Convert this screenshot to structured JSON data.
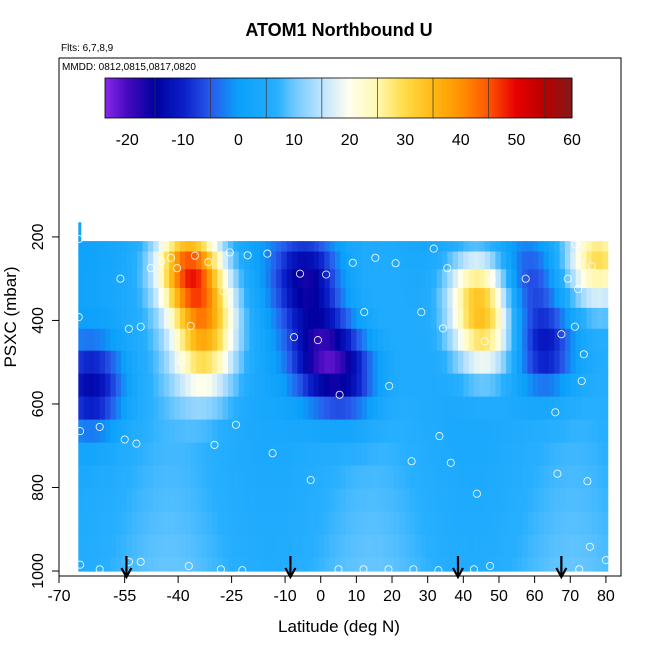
{
  "chart_data": {
    "type": "heatmap",
    "title": "ATOM1 Northbound U",
    "subtitle": "Flts: 6,7,8,9",
    "annotation": "MMDD: 0812,0815,0817,0820",
    "xlabel": "Latitude (deg N)",
    "ylabel": "PSXC (mbar)",
    "xlim": [
      -70,
      82
    ],
    "ylim": [
      1000,
      100
    ],
    "x_ticks": [
      -70,
      -55,
      -40,
      -25,
      -10,
      0,
      10,
      20,
      30,
      40,
      50,
      60,
      70,
      80
    ],
    "y_ticks": [
      200,
      400,
      600,
      800,
      1000
    ],
    "colorbar": {
      "ticks": [
        -20,
        -10,
        0,
        10,
        20,
        30,
        40,
        50,
        60
      ],
      "range": [
        -24,
        60
      ],
      "position": "top"
    },
    "arrow_latitudes": [
      -54.5,
      -8.5,
      38.5,
      67.5
    ],
    "pressure_bins": [
      215,
      255,
      300,
      345,
      395,
      445,
      500,
      555,
      610,
      665,
      720,
      775,
      830,
      885,
      940,
      995
    ],
    "latitude_range": [
      -68,
      80
    ],
    "wind_features": [
      {
        "lat": -37,
        "p": 270,
        "u": 40
      },
      {
        "lat": -32,
        "p": 390,
        "u": 26
      },
      {
        "lat": -33,
        "p": 500,
        "u": 18
      },
      {
        "lat": -4,
        "p": 300,
        "u": -15
      },
      {
        "lat": 0,
        "p": 480,
        "u": -16
      },
      {
        "lat": 8,
        "p": 540,
        "u": -12
      },
      {
        "lat": -64,
        "p": 560,
        "u": -14
      },
      {
        "lat": 44,
        "p": 330,
        "u": 27
      },
      {
        "lat": 46,
        "p": 440,
        "u": 22
      },
      {
        "lat": 58,
        "p": 300,
        "u": -8
      },
      {
        "lat": 63,
        "p": 470,
        "u": -14
      },
      {
        "lat": 78,
        "p": 250,
        "u": 28
      }
    ],
    "observations": [
      {
        "lat": -67.8,
        "p": 205
      },
      {
        "lat": -67.9,
        "p": 392
      },
      {
        "lat": -67.5,
        "p": 665
      },
      {
        "lat": -62.0,
        "p": 655
      },
      {
        "lat": -56.2,
        "p": 300
      },
      {
        "lat": -55.0,
        "p": 685
      },
      {
        "lat": -53.8,
        "p": 420
      },
      {
        "lat": -51.7,
        "p": 695
      },
      {
        "lat": -50.5,
        "p": 415
      },
      {
        "lat": -47.7,
        "p": 275
      },
      {
        "lat": -44.7,
        "p": 258
      },
      {
        "lat": -42.0,
        "p": 250
      },
      {
        "lat": -40.3,
        "p": 275
      },
      {
        "lat": -39.0,
        "p": 497
      },
      {
        "lat": -36.5,
        "p": 413
      },
      {
        "lat": -35.3,
        "p": 245
      },
      {
        "lat": -31.5,
        "p": 260
      },
      {
        "lat": -29.8,
        "p": 698
      },
      {
        "lat": -27.3,
        "p": 330
      },
      {
        "lat": -25.5,
        "p": 237
      },
      {
        "lat": -23.8,
        "p": 650
      },
      {
        "lat": -20.5,
        "p": 244
      },
      {
        "lat": -15.0,
        "p": 240
      },
      {
        "lat": -13.5,
        "p": 718
      },
      {
        "lat": -7.5,
        "p": 440
      },
      {
        "lat": -5.8,
        "p": 288
      },
      {
        "lat": -2.8,
        "p": 782
      },
      {
        "lat": -0.8,
        "p": 447
      },
      {
        "lat": 1.5,
        "p": 290
      },
      {
        "lat": 5.3,
        "p": 578
      },
      {
        "lat": 9.0,
        "p": 262
      },
      {
        "lat": 12.2,
        "p": 380
      },
      {
        "lat": 15.3,
        "p": 250
      },
      {
        "lat": 19.2,
        "p": 557
      },
      {
        "lat": 21.0,
        "p": 263
      },
      {
        "lat": 25.5,
        "p": 737
      },
      {
        "lat": 28.2,
        "p": 380
      },
      {
        "lat": 31.7,
        "p": 228
      },
      {
        "lat": 33.3,
        "p": 677
      },
      {
        "lat": 34.3,
        "p": 419
      },
      {
        "lat": 35.5,
        "p": 275
      },
      {
        "lat": 36.5,
        "p": 741
      },
      {
        "lat": 43.8,
        "p": 815
      },
      {
        "lat": 46.0,
        "p": 450
      },
      {
        "lat": 48.0,
        "p": 304
      },
      {
        "lat": 57.5,
        "p": 300
      },
      {
        "lat": 65.8,
        "p": 620
      },
      {
        "lat": 66.4,
        "p": 767
      },
      {
        "lat": 67.5,
        "p": 433
      },
      {
        "lat": 69.3,
        "p": 300
      },
      {
        "lat": 71.3,
        "p": 415
      },
      {
        "lat": 71.5,
        "p": 218
      },
      {
        "lat": 72.2,
        "p": 325
      },
      {
        "lat": 72.8,
        "p": 262
      },
      {
        "lat": 73.2,
        "p": 545
      },
      {
        "lat": 73.8,
        "p": 481
      },
      {
        "lat": 74.8,
        "p": 785
      },
      {
        "lat": 75.5,
        "p": 942
      },
      {
        "lat": 76.0,
        "p": 270
      },
      {
        "lat": 80.0,
        "p": 974
      },
      {
        "lat": -67.5,
        "p": 985
      },
      {
        "lat": -62.0,
        "p": 996
      },
      {
        "lat": -50.5,
        "p": 978
      },
      {
        "lat": -53.8,
        "p": 978
      },
      {
        "lat": -37.0,
        "p": 988
      },
      {
        "lat": -28.0,
        "p": 996
      },
      {
        "lat": -22.0,
        "p": 998
      },
      {
        "lat": 5.0,
        "p": 996
      },
      {
        "lat": 12.0,
        "p": 996
      },
      {
        "lat": 19.0,
        "p": 996
      },
      {
        "lat": 26.0,
        "p": 996
      },
      {
        "lat": 33.0,
        "p": 998
      },
      {
        "lat": 43.0,
        "p": 996
      },
      {
        "lat": 47.5,
        "p": 988
      },
      {
        "lat": 72.5,
        "p": 996
      }
    ]
  }
}
